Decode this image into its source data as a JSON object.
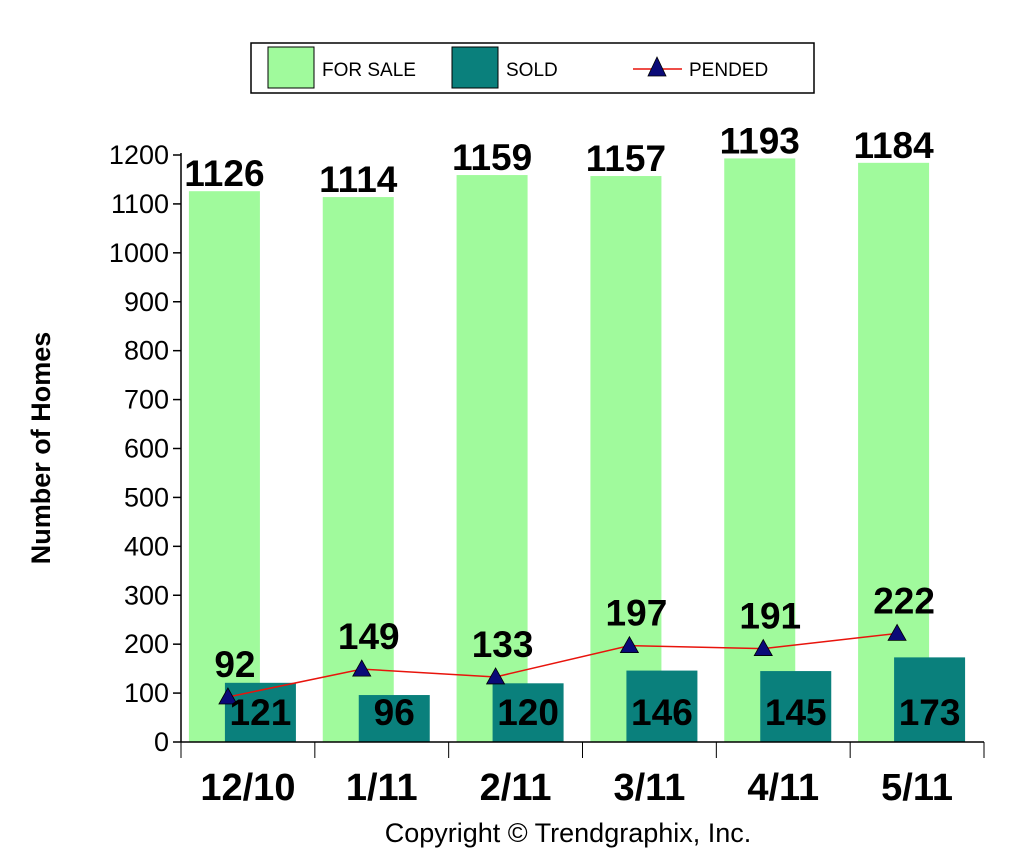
{
  "chart_data": {
    "type": "bar",
    "categories": [
      "12/10",
      "1/11",
      "2/11",
      "3/11",
      "4/11",
      "5/11"
    ],
    "series": [
      {
        "name": "FOR SALE",
        "type": "bar",
        "color": "#a0fa9c",
        "values": [
          1126,
          1114,
          1159,
          1157,
          1193,
          1184
        ]
      },
      {
        "name": "SOLD",
        "type": "bar",
        "color": "#0a807c",
        "values": [
          121,
          96,
          120,
          146,
          145,
          173
        ]
      },
      {
        "name": "PENDED",
        "type": "line",
        "color": "#e8140c",
        "marker_color": "#0a0a78",
        "marker": "triangle",
        "values": [
          92,
          149,
          133,
          197,
          191,
          222
        ]
      }
    ],
    "ylabel": "Number of Homes",
    "xlabel": "",
    "ylim": [
      0,
      1200
    ],
    "yticks": [
      0,
      100,
      200,
      300,
      400,
      500,
      600,
      700,
      800,
      900,
      1000,
      1100,
      1200
    ],
    "legend_position": "top-center",
    "grid": false,
    "footer": "Copyright © Trendgraphix, Inc."
  }
}
